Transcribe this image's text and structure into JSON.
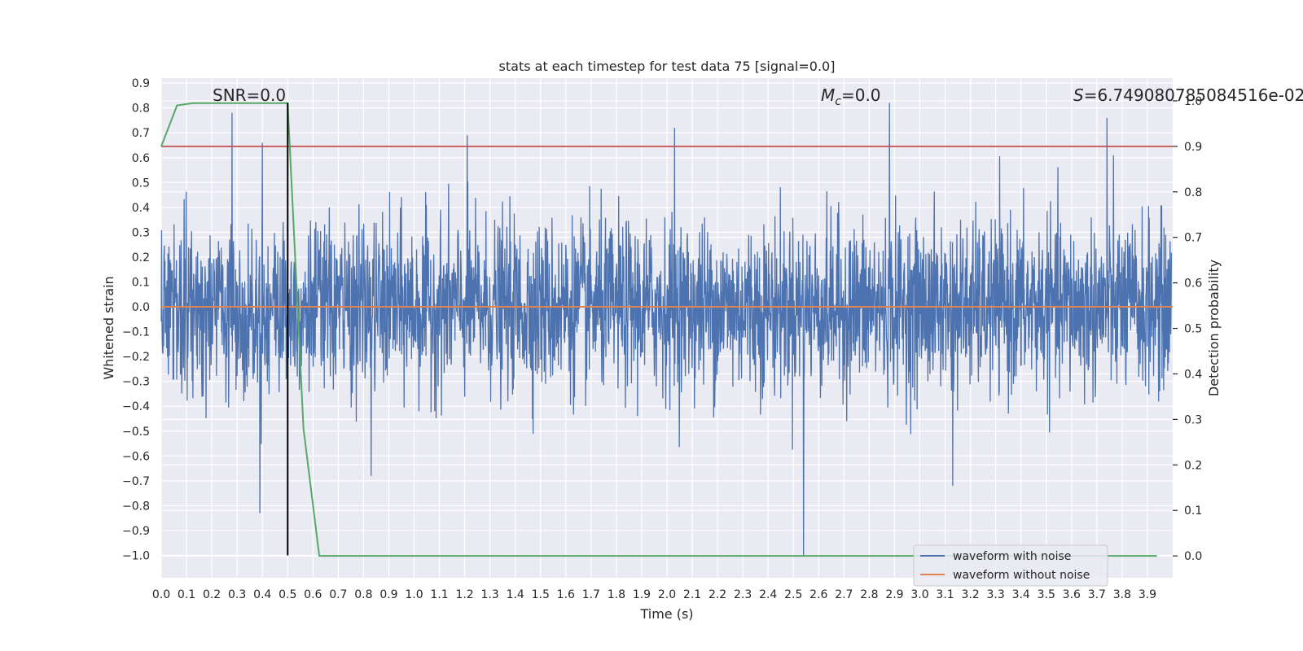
{
  "chart_data": {
    "type": "line",
    "title": "stats at each timestep for test data 75 [signal=0.0]",
    "xlabel": "Time (s)",
    "ylabel": "Whitened strain",
    "y2label": "Detection probability",
    "xlim": [
      0.0,
      4.0
    ],
    "ylim": [
      -1.09,
      0.92
    ],
    "y2lim": [
      -0.048,
      1.05
    ],
    "x_ticks": [
      "0.0",
      "0.1",
      "0.2",
      "0.3",
      "0.4",
      "0.5",
      "0.6",
      "0.7",
      "0.8",
      "0.9",
      "1.0",
      "1.1",
      "1.2",
      "1.3",
      "1.4",
      "1.5",
      "1.6",
      "1.7",
      "1.8",
      "1.9",
      "2.0",
      "2.1",
      "2.2",
      "2.3",
      "2.4",
      "2.5",
      "2.6",
      "2.7",
      "2.8",
      "2.9",
      "3.0",
      "3.1",
      "3.2",
      "3.3",
      "3.4",
      "3.5",
      "3.6",
      "3.7",
      "3.8",
      "3.9"
    ],
    "y_ticks": [
      "0.9",
      "0.8",
      "0.7",
      "0.6",
      "0.5",
      "0.4",
      "0.3",
      "0.2",
      "0.1",
      "0.0",
      "−0.1",
      "−0.2",
      "−0.3",
      "−0.4",
      "−0.5",
      "−0.6",
      "−0.7",
      "−0.8",
      "−0.9",
      "−1.0"
    ],
    "y2_ticks": [
      "1.0",
      "0.9",
      "0.8",
      "0.7",
      "0.6",
      "0.5",
      "0.4",
      "0.3",
      "0.2",
      "0.1",
      "0.0"
    ],
    "grid": true,
    "legend_position": "lower-right",
    "series": [
      {
        "name": "waveform with noise",
        "axis": "left",
        "color": "#4c72b0",
        "description": "whitened noise, sampled densely",
        "spikes": [
          {
            "x": 0.28,
            "y": 0.78
          },
          {
            "x": 0.4,
            "y": 0.66
          },
          {
            "x": 0.39,
            "y": -0.83
          },
          {
            "x": 1.21,
            "y": 0.69
          },
          {
            "x": 2.03,
            "y": 0.72
          },
          {
            "x": 2.88,
            "y": 0.82
          },
          {
            "x": 3.74,
            "y": 0.76
          },
          {
            "x": 2.54,
            "y": -1.0
          },
          {
            "x": 0.83,
            "y": -0.68
          },
          {
            "x": 3.13,
            "y": -0.72
          }
        ]
      },
      {
        "name": "waveform without noise",
        "axis": "left",
        "color": "#dd8452",
        "x": [
          0.0,
          4.0
        ],
        "y": [
          0.0,
          0.0
        ]
      },
      {
        "name": "detection probability",
        "axis": "right",
        "color": "#55a868",
        "x": [
          0.0,
          0.0625,
          0.125,
          0.1875,
          0.25,
          0.3125,
          0.375,
          0.4375,
          0.5,
          0.5625,
          0.625,
          3.9375
        ],
        "y": [
          0.9,
          0.99,
          0.995,
          0.995,
          0.995,
          0.995,
          0.995,
          0.995,
          0.995,
          0.28,
          0.0,
          0.0
        ]
      }
    ],
    "threshold": {
      "axis": "right",
      "value": 0.9,
      "color": "#c44e52"
    },
    "marker": {
      "x": 0.5,
      "y_from": -1.0,
      "y_to": 0.82,
      "color": "#000000"
    },
    "annotations": [
      {
        "text": "SNR=0.0",
        "anchor_x": 0.2
      },
      {
        "text_main": "M",
        "text_sub": "c",
        "text_rest": "=0.0",
        "anchor_x": 2.6
      },
      {
        "text_main": "S",
        "text_rest": "=6.749080785084516e-02",
        "anchor_x": 3.6
      }
    ]
  }
}
